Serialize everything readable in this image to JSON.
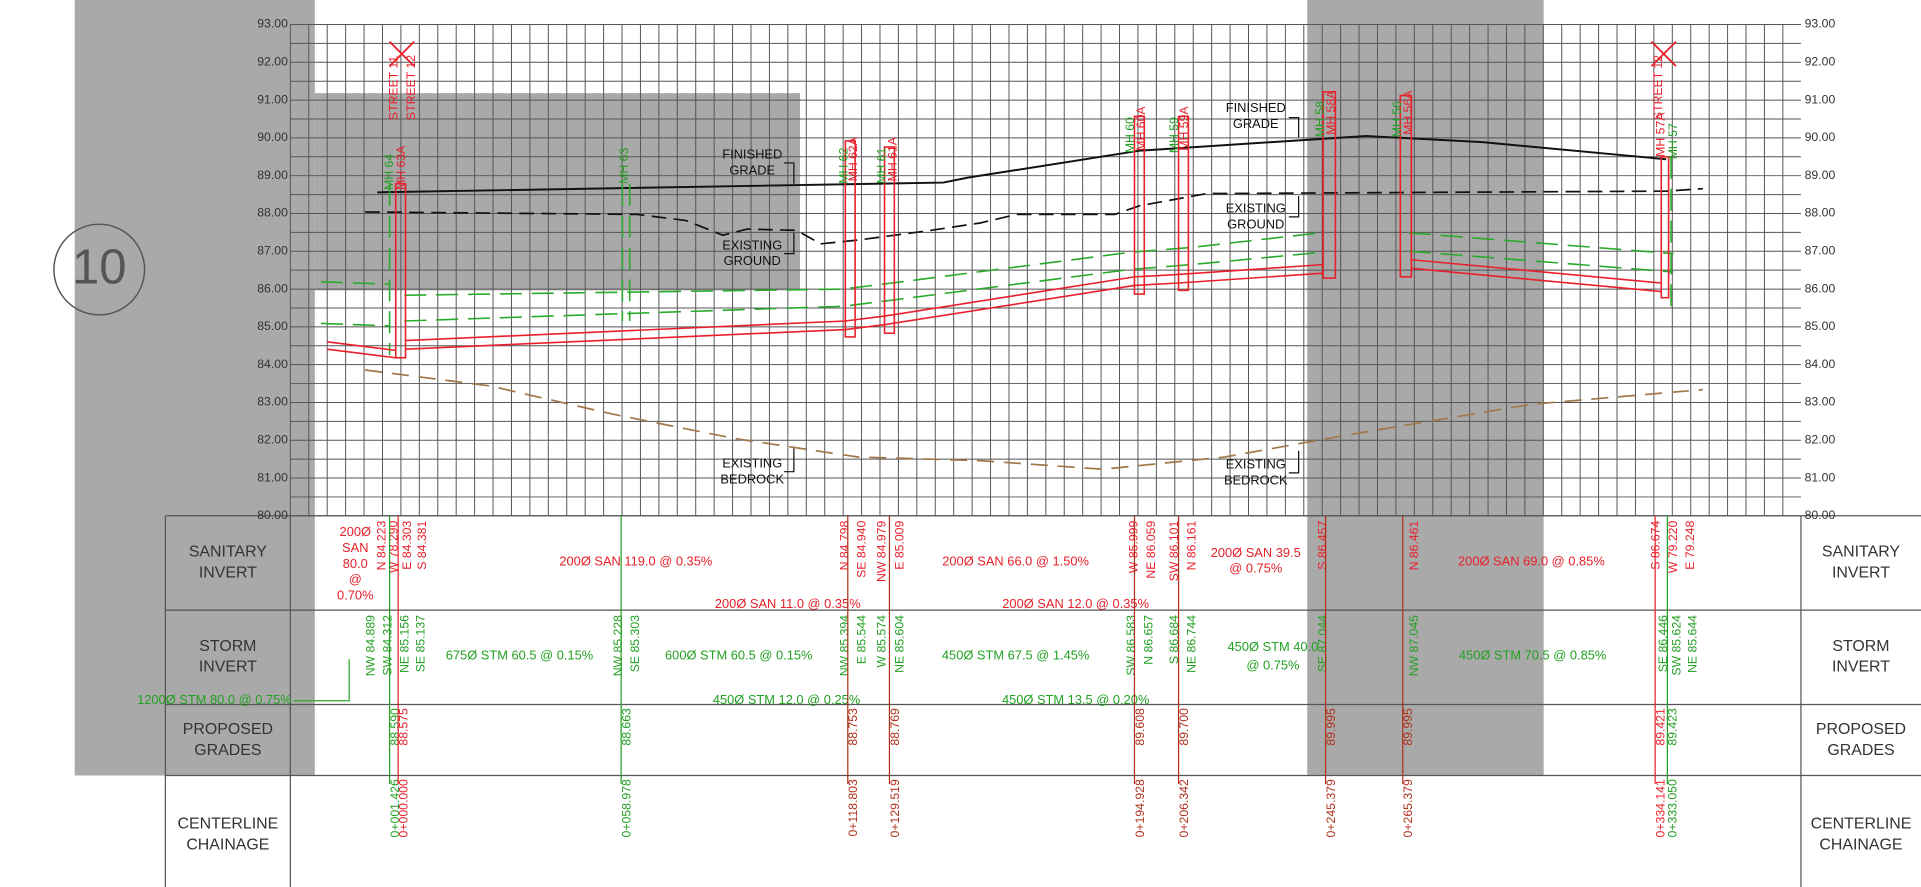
{
  "sheet_number": "10",
  "elevation_labels": [
    "93.00",
    "92.00",
    "91.00",
    "90.00",
    "89.00",
    "88.00",
    "87.00",
    "86.00",
    "85.00",
    "84.00",
    "83.00",
    "82.00",
    "81.00",
    "80.00"
  ],
  "row_headers": [
    [
      "SANITARY",
      "INVERT"
    ],
    [
      "STORM",
      "INVERT"
    ],
    [
      "PROPOSED",
      "GRADES"
    ],
    [
      "CENTERLINE",
      "CHAINAGE"
    ]
  ],
  "manholes": [
    "MH 64",
    "MH 63A",
    "MH 63",
    "MH 62",
    "MH 62A",
    "MH 61",
    "MH 61A",
    "MH 60",
    "MH 60A",
    "MH 59",
    "MH 59A",
    "MH 58",
    "MH 58A",
    "MH 56",
    "MH 56A",
    "MH 57A",
    "MH 57"
  ],
  "streets": [
    "STREET 11",
    "STREET 12",
    "STREET 12"
  ],
  "annotations": [
    [
      "FINISHED",
      "GRADE"
    ],
    [
      "EXISTING",
      "GROUND"
    ],
    [
      "EXISTING",
      "BEDROCK"
    ],
    [
      "FINISHED",
      "GRADE"
    ],
    [
      "EXISTING",
      "GROUND"
    ],
    [
      "EXISTING",
      "BEDROCK"
    ]
  ],
  "sanitary": {
    "notes": [
      [
        "200Ø",
        "SAN",
        "80.0",
        "@",
        "0.70%"
      ],
      [
        "200Ø SAN 119.0 @ 0.35%"
      ],
      [
        "200Ø SAN 66.0 @ 1.50%"
      ],
      [
        "200Ø SAN 11.0 @ 0.35%"
      ],
      [
        "200Ø SAN 12.0 @ 0.35%"
      ],
      [
        "200Ø SAN 39.5",
        "@ 0.75%"
      ],
      [
        "200Ø SAN 69.0 @ 0.85%"
      ]
    ],
    "inverts": [
      "N 84.223",
      "W 78.290",
      "E 84.303",
      "S 84.381",
      "N 84.798",
      "SE 84.940",
      "NW 84.979",
      "E 85.009",
      "W 85.999",
      "NE 86.059",
      "SW 86.101",
      "N 86.161",
      "S 86.457",
      "N 86.461",
      "S 86.674",
      "W 79.220",
      "E 79.248"
    ]
  },
  "storm": {
    "notes": [
      [
        "675Ø STM 60.5 @ 0.15%"
      ],
      [
        "600Ø STM 60.5 @ 0.15%"
      ],
      [
        "1200Ø STM 80.0 @ 0.75%"
      ],
      [
        "450Ø STM 12.0 @ 0.25%"
      ],
      [
        "450Ø STM 67.5 @ 1.45%"
      ],
      [
        "450Ø STM 13.5 @ 0.20%"
      ],
      [
        "450Ø STM 40.0",
        "@ 0.75%"
      ],
      [
        "450Ø STM 70.5 @ 0.85%"
      ]
    ],
    "inverts": [
      "NW 84.889",
      "SW 84.312",
      "NE 85.156",
      "SE 85.137",
      "NW 85.228",
      "SE 85.303",
      "NW 85.394",
      "E 85.544",
      "W 85.574",
      "NE 85.604",
      "SW 86.583",
      "N 86.657",
      "S 86.684",
      "NE 86.744",
      "SE 87.044",
      "NW 87.045",
      "SE 86.446",
      "SW 85.624",
      "NE 85.644"
    ]
  },
  "proposed_grades": [
    "88.590",
    "88.575",
    "88.663",
    "88.753",
    "88.769",
    "89.608",
    "89.700",
    "89.995",
    "89.995",
    "89.421",
    "89.423"
  ],
  "chainage": [
    "0+001.426",
    "0+000.000",
    "0+058.978",
    "0+118.803",
    "0+129.519",
    "0+194.928",
    "0+206.342",
    "0+245.379",
    "0+265.379",
    "0+334.141",
    "0+333.050"
  ]
}
